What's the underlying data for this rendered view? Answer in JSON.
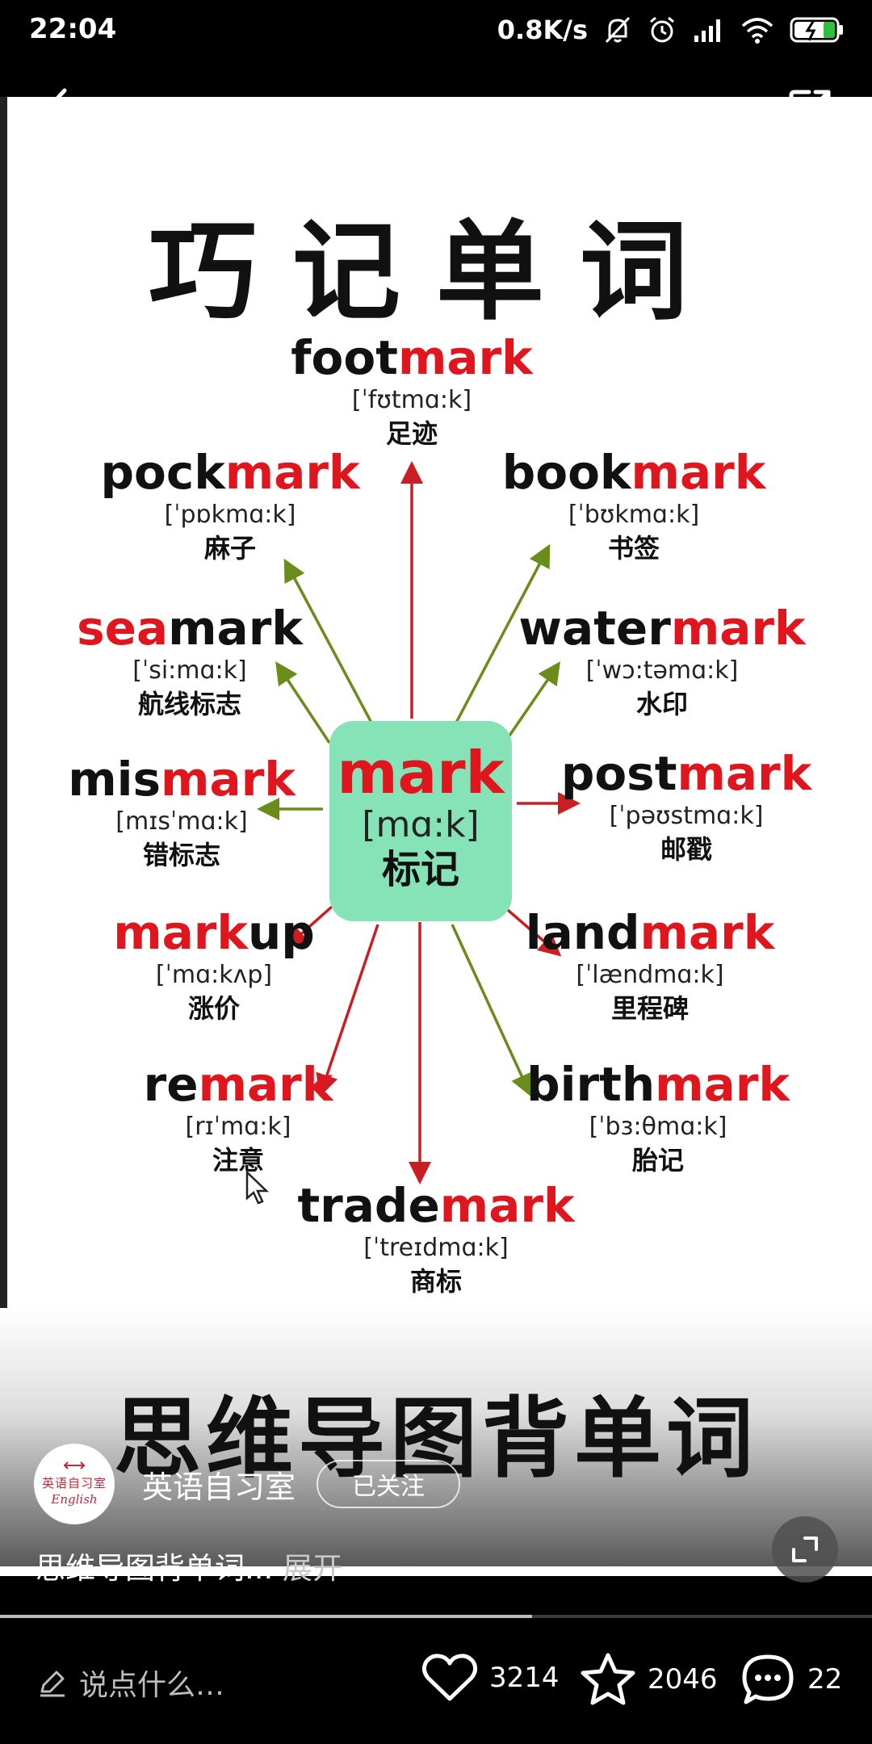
{
  "status_bar": {
    "time": "22:04",
    "network_speed": "0.8K/s"
  },
  "video": {
    "title": "巧记单词",
    "banner": "思维导图背单词",
    "center": {
      "word": "mark",
      "ipa": "[mɑ:k]",
      "meaning": "标记"
    },
    "words": [
      {
        "pre": "foot",
        "red": "mark",
        "post": "",
        "ipa": "[ˈfʊtmɑ:k]",
        "meaning": "足迹"
      },
      {
        "pre": "pock",
        "red": "mark",
        "post": "",
        "ipa": "[ˈpɒkmɑ:k]",
        "meaning": "麻子"
      },
      {
        "pre": "book",
        "red": "mark",
        "post": "",
        "ipa": "[ˈbʊkmɑ:k]",
        "meaning": "书签"
      },
      {
        "pre": "",
        "red": "sea",
        "post": "mark",
        "ipa": "[ˈsi:mɑ:k]",
        "meaning": "航线标志"
      },
      {
        "pre": "water",
        "red": "mark",
        "post": "",
        "ipa": "[ˈwɔ:təmɑ:k]",
        "meaning": "水印"
      },
      {
        "pre": "mis",
        "red": "mark",
        "post": "",
        "ipa": "[mɪsˈmɑ:k]",
        "meaning": "错标志"
      },
      {
        "pre": "post",
        "red": "mark",
        "post": "",
        "ipa": "[ˈpəʊstmɑ:k]",
        "meaning": "邮戳"
      },
      {
        "pre": "",
        "red": "mark",
        "post": "up",
        "ipa": "[ˈmɑ:kʌp]",
        "meaning": "涨价"
      },
      {
        "pre": "land",
        "red": "mark",
        "post": "",
        "ipa": "[ˈlændmɑ:k]",
        "meaning": "里程碑"
      },
      {
        "pre": "re",
        "red": "mark",
        "post": "",
        "ipa": "[rɪˈmɑ:k]",
        "meaning": "注意"
      },
      {
        "pre": "birth",
        "red": "mark",
        "post": "",
        "ipa": "[ˈbɜ:θmɑ:k]",
        "meaning": "胎记"
      },
      {
        "pre": "trade",
        "red": "mark",
        "post": "",
        "ipa": "[ˈtreɪdmɑ:k]",
        "meaning": "商标"
      }
    ]
  },
  "author": {
    "avatar_top": "英语自习室",
    "avatar_bottom": "English",
    "name": "英语自习室",
    "follow_label": "已关注"
  },
  "caption": {
    "text": "思维导图背单词...",
    "expand": " 展开"
  },
  "progress": {
    "fraction": 0.61
  },
  "bottom_bar": {
    "comment_placeholder": "说点什么…",
    "likes": "3214",
    "favorites": "2046",
    "comments": "22"
  },
  "colors": {
    "accent_red": "#e0161f",
    "center_green": "#86e3b8",
    "arrow_red": "#c81e24",
    "arrow_green": "#6a8c1a"
  },
  "icons": [
    "back-icon",
    "share-icon",
    "expand-icon",
    "pencil-icon",
    "heart-icon",
    "star-icon",
    "comment-icon"
  ]
}
